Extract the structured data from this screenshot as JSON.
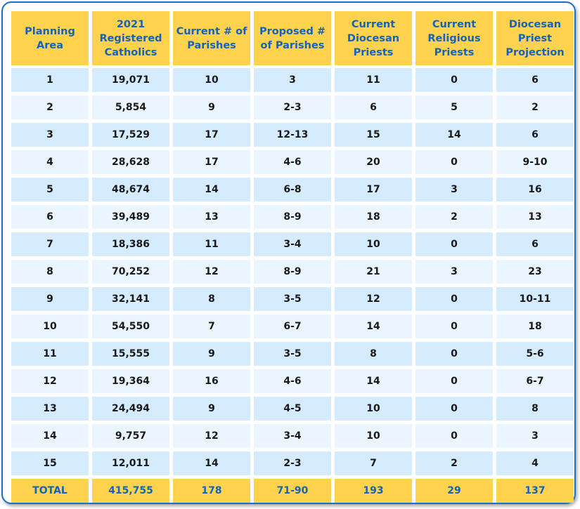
{
  "headers": [
    "Planning Area",
    "2021 Registered Catholics",
    "Current # of Parishes",
    "Proposed # of Parishes",
    "Current Diocesan Priests",
    "Current Religious Priests",
    "Diocesan Priest Projection"
  ],
  "rows": [
    [
      "1",
      "19,071",
      "10",
      "3",
      "11",
      "0",
      "6"
    ],
    [
      "2",
      "5,854",
      "9",
      "2-3",
      "6",
      "5",
      "2"
    ],
    [
      "3",
      "17,529",
      "17",
      "12-13",
      "15",
      "14",
      "6"
    ],
    [
      "4",
      "28,628",
      "17",
      "4-6",
      "20",
      "0",
      "9-10"
    ],
    [
      "5",
      "48,674",
      "14",
      "6-8",
      "17",
      "3",
      "16"
    ],
    [
      "6",
      "39,489",
      "13",
      "8-9",
      "18",
      "2",
      "13"
    ],
    [
      "7",
      "18,386",
      "11",
      "3-4",
      "10",
      "0",
      "6"
    ],
    [
      "8",
      "70,252",
      "12",
      "8-9",
      "21",
      "3",
      "23"
    ],
    [
      "9",
      "32,141",
      "8",
      "3-5",
      "12",
      "0",
      "10-11"
    ],
    [
      "10",
      "54,550",
      "7",
      "6-7",
      "14",
      "0",
      "18"
    ],
    [
      "11",
      "15,555",
      "9",
      "3-5",
      "8",
      "0",
      "5-6"
    ],
    [
      "12",
      "19,364",
      "16",
      "4-6",
      "14",
      "0",
      "6-7"
    ],
    [
      "13",
      "24,494",
      "9",
      "4-5",
      "10",
      "0",
      "8"
    ],
    [
      "14",
      "9,757",
      "12",
      "3-4",
      "10",
      "0",
      "3"
    ],
    [
      "15",
      "12,011",
      "14",
      "2-3",
      "7",
      "2",
      "4"
    ]
  ],
  "totals": [
    "TOTAL",
    "415,755",
    "178",
    "71-90",
    "193",
    "29",
    "137"
  ],
  "colors": {
    "header_bg": "#ffd34d",
    "header_text": "#1562b8",
    "row_alt": "#d5ebff",
    "row_plain": "#eaf5ff",
    "border": "#1a6fc9"
  }
}
